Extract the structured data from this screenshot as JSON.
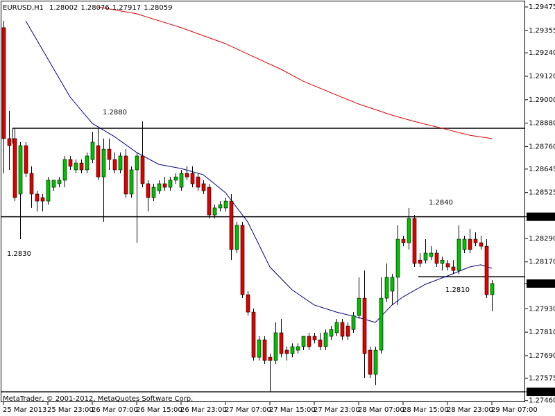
{
  "chart_data": {
    "type": "candlestick",
    "title": "EURUSD,H1",
    "footer": "MetaTrader, © 2001-2012, MetaQuotes Software Corp.",
    "categories": [
      "25 Mar 2013",
      null,
      null,
      null,
      null,
      null,
      null,
      null,
      "25 Mar 23:00",
      null,
      null,
      null,
      null,
      null,
      null,
      null,
      "26 Mar 07:00",
      null,
      null,
      null,
      null,
      null,
      null,
      null,
      "26 Mar 15:00",
      null,
      null,
      null,
      null,
      null,
      null,
      null,
      "26 Mar 23:00",
      null,
      null,
      null,
      null,
      null,
      null,
      null,
      "27 Mar 07:00",
      null,
      null,
      null,
      null,
      null,
      null,
      null,
      "27 Mar 15:00",
      null,
      null,
      null,
      null,
      null,
      null,
      null,
      "27 Mar 23:00",
      null,
      null,
      null,
      null,
      null,
      null,
      null,
      "28 Mar 07:00",
      null,
      null,
      null,
      null,
      null,
      null,
      null,
      "28 Mar 15:00",
      null,
      null,
      null,
      null,
      null,
      null,
      null,
      "28 Mar 23:00",
      null,
      null,
      null,
      null,
      null,
      null,
      null,
      "29 Mar 07:00"
    ],
    "open": [
      1.29369,
      1.28801,
      1.28801,
      1.28517,
      1.28765,
      1.28623,
      1.28517,
      1.28499,
      1.28481,
      1.28552,
      1.2857,
      1.28588,
      1.28694,
      1.28641,
      1.28676,
      1.28641,
      1.28694,
      1.28765,
      1.28605,
      1.28747,
      1.28694,
      1.28641,
      1.28712,
      1.28517,
      1.28641,
      1.28712,
      1.2857,
      1.28499,
      1.28534,
      1.2857,
      1.28552,
      1.28588,
      1.28552,
      1.28623,
      1.28623,
      1.28605,
      1.2857,
      1.28552,
      1.2841,
      1.28446,
      1.28446,
      1.28481,
      1.28233,
      1.28357,
      1.28002,
      1.27913,
      1.27682,
      1.27771,
      1.27682,
      1.27665,
      1.27807,
      1.27718,
      1.277,
      1.27718,
      1.27736,
      1.27789,
      1.27789,
      1.27771,
      1.27736,
      1.27789,
      1.27807,
      1.2786,
      1.27842,
      1.27824,
      1.27895,
      1.27984,
      1.27718,
      1.27594,
      1.27718,
      1.27984,
      1.2802,
      1.28091,
      1.28286,
      1.28268,
      1.28392,
      1.28179,
      1.28179,
      1.28197,
      1.28215,
      1.28162,
      1.28162,
      1.28144,
      1.28126,
      1.28233,
      1.28286,
      1.28286,
      1.28268,
      1.2825,
      1.28002
    ],
    "high": [
      1.29404,
      1.28943,
      1.28854,
      1.28783,
      1.28783,
      1.28659,
      1.28534,
      1.28517,
      1.28605,
      1.28588,
      1.28605,
      1.28712,
      1.28712,
      1.28694,
      1.28694,
      1.2873,
      1.28836,
      1.28854,
      1.28801,
      1.28801,
      1.2873,
      1.2873,
      1.28747,
      1.28659,
      1.2873,
      1.28889,
      1.28588,
      1.2857,
      1.28588,
      1.28605,
      1.28605,
      1.28623,
      1.28641,
      1.28659,
      1.28659,
      1.28623,
      1.28588,
      1.2857,
      1.28463,
      1.28481,
      1.28499,
      1.28517,
      1.28375,
      1.28375,
      1.2802,
      1.27931,
      1.27789,
      1.27789,
      1.277,
      1.2786,
      1.27878,
      1.27736,
      1.27753,
      1.27753,
      1.27789,
      1.27807,
      1.27807,
      1.27807,
      1.27824,
      1.27842,
      1.27878,
      1.27878,
      1.2786,
      1.27913,
      1.28091,
      1.28126,
      1.27736,
      1.27736,
      1.28091,
      1.28162,
      1.28108,
      1.28357,
      1.28304,
      1.28446,
      1.2841,
      1.28215,
      1.28286,
      1.2825,
      1.28233,
      1.28197,
      1.28179,
      1.28179,
      1.28357,
      1.28304,
      1.28339,
      1.28321,
      1.28304,
      1.28286,
      1.28076
    ],
    "low": [
      1.28623,
      1.28641,
      1.28481,
      1.28286,
      1.28605,
      1.28446,
      1.28428,
      1.28428,
      1.28463,
      1.28534,
      1.28552,
      1.28552,
      1.28641,
      1.28623,
      1.28623,
      1.28623,
      1.28676,
      1.28588,
      1.28375,
      1.28641,
      1.28623,
      1.28623,
      1.28499,
      1.28499,
      1.28268,
      1.28552,
      1.28428,
      1.28481,
      1.28517,
      1.28534,
      1.28534,
      1.2857,
      1.28534,
      1.28588,
      1.28552,
      1.28534,
      1.28517,
      1.28392,
      1.28392,
      1.28428,
      1.28428,
      1.28179,
      1.28215,
      1.27984,
      1.27895,
      1.27665,
      1.27665,
      1.27647,
      1.27505,
      1.27647,
      1.27682,
      1.27665,
      1.27682,
      1.277,
      1.27718,
      1.27718,
      1.27753,
      1.27718,
      1.27718,
      1.27771,
      1.27789,
      1.27771,
      1.27771,
      1.27807,
      1.27878,
      1.27576,
      1.27576,
      1.2754,
      1.277,
      1.27966,
      1.27949,
      1.27949,
      1.2825,
      1.28233,
      1.28144,
      1.28144,
      1.28162,
      1.28179,
      1.28144,
      1.28126,
      1.28126,
      1.28108,
      1.28108,
      1.28215,
      1.28215,
      1.2825,
      1.28233,
      1.27984,
      1.27917
    ],
    "close": [
      1.28801,
      1.28765,
      1.28499,
      1.28765,
      1.28623,
      1.28517,
      1.28481,
      1.28481,
      1.28588,
      1.28588,
      1.28588,
      1.28694,
      1.28659,
      1.28676,
      1.28641,
      1.28712,
      1.28783,
      1.28605,
      1.28747,
      1.28694,
      1.28641,
      1.28712,
      1.28517,
      1.28641,
      1.28712,
      1.2857,
      1.28499,
      1.28552,
      1.2857,
      1.28552,
      1.28588,
      1.28605,
      1.28623,
      1.28605,
      1.2857,
      1.28552,
      1.28534,
      1.2841,
      1.28446,
      1.28463,
      1.28481,
      1.28233,
      1.28357,
      1.28002,
      1.27913,
      1.27682,
      1.27771,
      1.27665,
      1.27665,
      1.27807,
      1.277,
      1.277,
      1.27736,
      1.27736,
      1.27789,
      1.27736,
      1.27771,
      1.27736,
      1.27807,
      1.27824,
      1.2786,
      1.27789,
      1.27789,
      1.27895,
      1.27984,
      1.277,
      1.27594,
      1.27718,
      1.27984,
      1.28091,
      1.28091,
      1.28286,
      1.28268,
      1.28392,
      1.28162,
      1.28162,
      1.28215,
      1.28215,
      1.28162,
      1.28179,
      1.28144,
      1.28126,
      1.28286,
      1.28286,
      1.28233,
      1.28268,
      1.2825,
      1.28002,
      1.28059
    ],
    "up_color": "#00c000",
    "down_color": "#e00000",
    "ylim": [
      1.27452,
      1.29475
    ],
    "yticks": [
      1.29475,
      1.29355,
      {
        "value": 1.2924,
        "label": "1.29240"
      },
      {
        "value": 1.2912,
        "label": "1.29120"
      },
      {
        "value": 1.29,
        "label": "1.29000"
      },
      {
        "value": 1.2888,
        "label": "1.28880"
      },
      {
        "value": 1.2876,
        "label": "1.28760"
      },
      1.28645,
      1.28525,
      1.28401,
      {
        "value": 1.2829,
        "label": "1.28290"
      },
      {
        "value": 1.2817,
        "label": "1.28170"
      },
      1.28059,
      {
        "value": 1.2793,
        "label": "1.27930"
      },
      {
        "value": 1.2781,
        "label": "1.27810"
      },
      {
        "value": 1.2769,
        "label": "1.27690"
      },
      1.27575,
      1.27505,
      {
        "value": 1.2746,
        "label": "1.27460"
      }
    ],
    "grid": false,
    "indicators": [
      {
        "color": "#000080",
        "x": [
          4,
          8,
          12,
          16,
          20,
          24,
          28,
          32,
          36,
          40,
          44,
          48,
          52,
          56,
          60,
          64,
          67,
          70,
          72,
          76,
          80,
          84,
          86,
          88
        ],
        "values": [
          1.29404,
          1.29209,
          1.29014,
          1.28879,
          1.28811,
          1.2873,
          1.28669,
          1.28648,
          1.28616,
          1.28524,
          1.28375,
          1.28144,
          1.28027,
          1.27949,
          1.27913,
          1.27885,
          1.2786,
          1.27949,
          1.27991,
          1.28055,
          1.28098,
          1.28144,
          1.28155,
          1.28137
        ]
      },
      {
        "color": "#e00000",
        "x": [
          17,
          24,
          32,
          40,
          44,
          50,
          54,
          60,
          64,
          70,
          74,
          80,
          84,
          88
        ],
        "values": [
          1.29475,
          1.2944,
          1.29369,
          1.29287,
          1.29234,
          1.29156,
          1.29095,
          1.29024,
          1.28978,
          1.28921,
          1.28889,
          1.28847,
          1.28818,
          1.28801
        ]
      }
    ],
    "levels": [
      1.28854,
      1.28401,
      1.28094,
      1.27505
    ],
    "annotations": [
      "1.2880",
      "1.2840",
      "1.2810",
      "1.2830"
    ]
  }
}
